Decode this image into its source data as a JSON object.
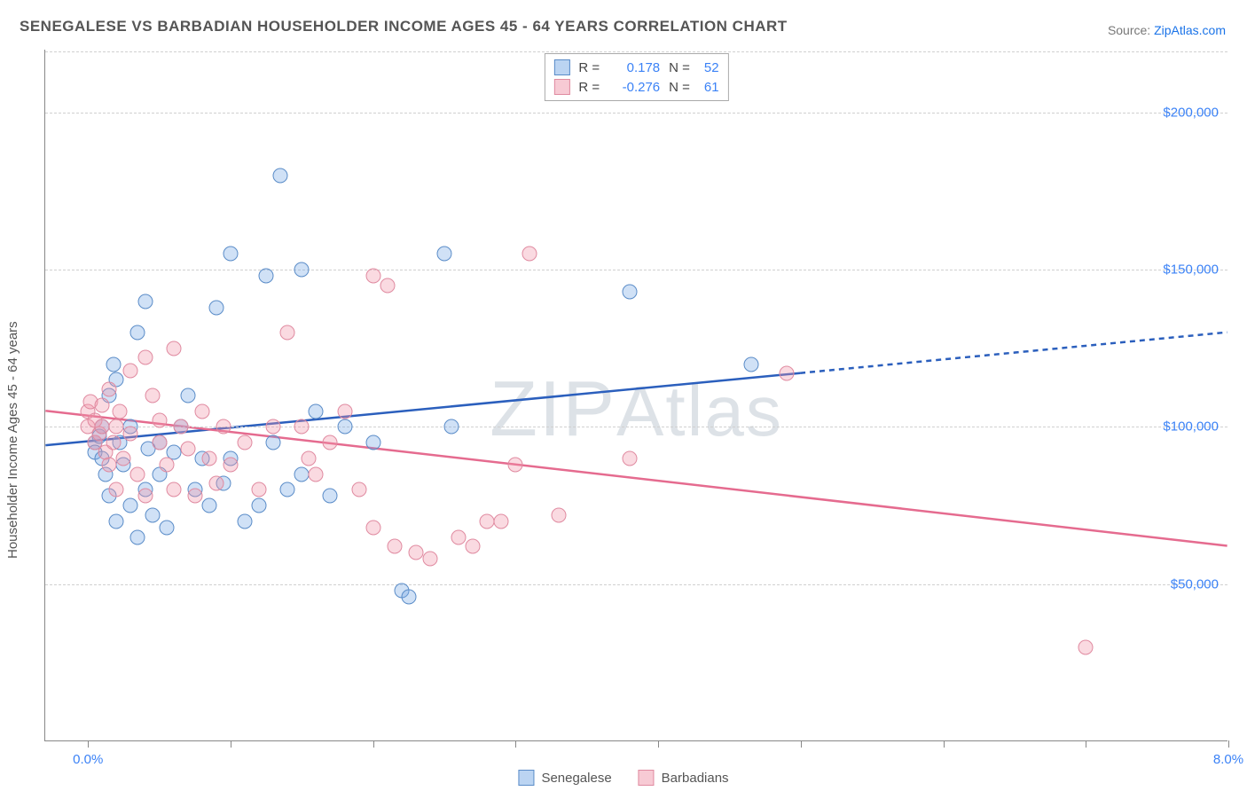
{
  "title": "SENEGALESE VS BARBADIAN HOUSEHOLDER INCOME AGES 45 - 64 YEARS CORRELATION CHART",
  "source_label": "Source: ",
  "source_name": "ZipAtlas.com",
  "watermark": "ZIPAtlas",
  "chart": {
    "type": "scatter",
    "ylabel": "Householder Income Ages 45 - 64 years",
    "xlim": [
      -0.3,
      8.0
    ],
    "ylim": [
      0,
      220000
    ],
    "xticks": [
      0.0,
      1.0,
      2.0,
      3.0,
      4.0,
      5.0,
      6.0,
      7.0,
      8.0
    ],
    "xtick_labels": {
      "0": "0.0%",
      "8": "8.0%"
    },
    "yticks": [
      50000,
      100000,
      150000,
      200000
    ],
    "ytick_labels": [
      "$50,000",
      "$100,000",
      "$150,000",
      "$200,000"
    ],
    "grid_color": "#d0d0d0",
    "axis_color": "#888888",
    "background_color": "#ffffff",
    "marker_radius": 8.5,
    "series": [
      {
        "name": "Senegalese",
        "color_fill": "rgba(120,170,230,0.35)",
        "color_stroke": "#5a8cc8",
        "line_color": "#2b5fbd",
        "R": "0.178",
        "N": "52",
        "trend": {
          "x1": -0.3,
          "y1": 94000,
          "x2": 5.0,
          "y2": 117000,
          "x2_dash": 8.0,
          "y2_dash": 130000
        },
        "points": [
          [
            0.05,
            95000
          ],
          [
            0.05,
            92000
          ],
          [
            0.08,
            97000
          ],
          [
            0.1,
            100000
          ],
          [
            0.1,
            90000
          ],
          [
            0.12,
            85000
          ],
          [
            0.15,
            110000
          ],
          [
            0.15,
            78000
          ],
          [
            0.18,
            120000
          ],
          [
            0.2,
            115000
          ],
          [
            0.2,
            70000
          ],
          [
            0.22,
            95000
          ],
          [
            0.25,
            88000
          ],
          [
            0.3,
            75000
          ],
          [
            0.3,
            100000
          ],
          [
            0.35,
            130000
          ],
          [
            0.35,
            65000
          ],
          [
            0.4,
            140000
          ],
          [
            0.4,
            80000
          ],
          [
            0.45,
            72000
          ],
          [
            0.5,
            85000
          ],
          [
            0.5,
            95000
          ],
          [
            0.55,
            68000
          ],
          [
            0.6,
            92000
          ],
          [
            0.65,
            100000
          ],
          [
            0.7,
            110000
          ],
          [
            0.75,
            80000
          ],
          [
            0.8,
            90000
          ],
          [
            0.85,
            75000
          ],
          [
            0.9,
            138000
          ],
          [
            0.95,
            82000
          ],
          [
            1.0,
            155000
          ],
          [
            1.0,
            90000
          ],
          [
            1.1,
            70000
          ],
          [
            1.2,
            75000
          ],
          [
            1.25,
            148000
          ],
          [
            1.3,
            95000
          ],
          [
            1.35,
            180000
          ],
          [
            1.4,
            80000
          ],
          [
            1.5,
            150000
          ],
          [
            1.5,
            85000
          ],
          [
            1.6,
            105000
          ],
          [
            1.7,
            78000
          ],
          [
            1.8,
            100000
          ],
          [
            2.0,
            95000
          ],
          [
            2.2,
            48000
          ],
          [
            2.25,
            46000
          ],
          [
            2.5,
            155000
          ],
          [
            2.55,
            100000
          ],
          [
            3.8,
            143000
          ],
          [
            4.65,
            120000
          ],
          [
            0.42,
            93000
          ]
        ]
      },
      {
        "name": "Barbadians",
        "color_fill": "rgba(240,150,170,0.35)",
        "color_stroke": "#e08aa0",
        "line_color": "#e56b8f",
        "R": "-0.276",
        "N": "61",
        "trend": {
          "x1": -0.3,
          "y1": 105000,
          "x2": 8.0,
          "y2": 62000
        },
        "points": [
          [
            0.0,
            105000
          ],
          [
            0.0,
            100000
          ],
          [
            0.02,
            108000
          ],
          [
            0.05,
            102000
          ],
          [
            0.05,
            95000
          ],
          [
            0.08,
            98000
          ],
          [
            0.1,
            100000
          ],
          [
            0.1,
            107000
          ],
          [
            0.12,
            92000
          ],
          [
            0.15,
            112000
          ],
          [
            0.15,
            88000
          ],
          [
            0.18,
            95000
          ],
          [
            0.2,
            100000
          ],
          [
            0.2,
            80000
          ],
          [
            0.22,
            105000
          ],
          [
            0.25,
            90000
          ],
          [
            0.3,
            98000
          ],
          [
            0.3,
            118000
          ],
          [
            0.35,
            85000
          ],
          [
            0.4,
            122000
          ],
          [
            0.4,
            78000
          ],
          [
            0.45,
            110000
          ],
          [
            0.5,
            95000
          ],
          [
            0.5,
            102000
          ],
          [
            0.55,
            88000
          ],
          [
            0.6,
            125000
          ],
          [
            0.6,
            80000
          ],
          [
            0.65,
            100000
          ],
          [
            0.7,
            93000
          ],
          [
            0.75,
            78000
          ],
          [
            0.8,
            105000
          ],
          [
            0.85,
            90000
          ],
          [
            0.9,
            82000
          ],
          [
            0.95,
            100000
          ],
          [
            1.0,
            88000
          ],
          [
            1.1,
            95000
          ],
          [
            1.2,
            80000
          ],
          [
            1.3,
            100000
          ],
          [
            1.4,
            130000
          ],
          [
            1.5,
            100000
          ],
          [
            1.55,
            90000
          ],
          [
            1.6,
            85000
          ],
          [
            1.7,
            95000
          ],
          [
            1.8,
            105000
          ],
          [
            1.9,
            80000
          ],
          [
            2.0,
            148000
          ],
          [
            2.0,
            68000
          ],
          [
            2.1,
            145000
          ],
          [
            2.15,
            62000
          ],
          [
            2.3,
            60000
          ],
          [
            2.4,
            58000
          ],
          [
            2.6,
            65000
          ],
          [
            2.7,
            62000
          ],
          [
            2.8,
            70000
          ],
          [
            2.9,
            70000
          ],
          [
            3.0,
            88000
          ],
          [
            3.1,
            155000
          ],
          [
            3.3,
            72000
          ],
          [
            3.8,
            90000
          ],
          [
            4.9,
            117000
          ],
          [
            7.0,
            30000
          ]
        ]
      }
    ],
    "bottom_legend": [
      "Senegalese",
      "Barbadians"
    ]
  }
}
